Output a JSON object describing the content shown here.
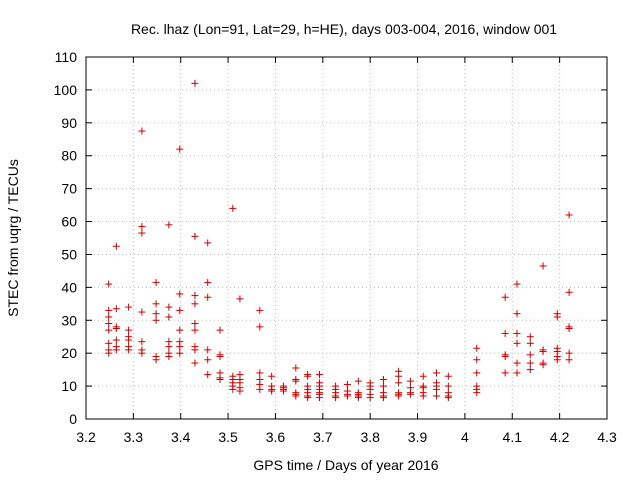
{
  "chart_data": {
    "type": "scatter",
    "title": "Rec. lhaz (Lon=91, Lat=29, h=HE), days 003-004, 2016, window 001",
    "xlabel": "GPS time / Days of year 2016",
    "ylabel": "STEC from uqrg / TECUs",
    "xlim": [
      3.2,
      4.3
    ],
    "ylim": [
      0,
      110
    ],
    "xticks": [
      "3.2",
      "3.3",
      "3.4",
      "3.5",
      "3.6",
      "3.7",
      "3.8",
      "3.9",
      "4",
      "4.1",
      "4.2",
      "4.3"
    ],
    "yticks": [
      "0",
      "10",
      "20",
      "30",
      "40",
      "50",
      "60",
      "70",
      "80",
      "90",
      "100",
      "110"
    ],
    "grid": true,
    "marker": "+",
    "color": "#cc0000",
    "points": [
      [
        3.248,
        41
      ],
      [
        3.248,
        33
      ],
      [
        3.248,
        31
      ],
      [
        3.248,
        29
      ],
      [
        3.248,
        27
      ],
      [
        3.248,
        23
      ],
      [
        3.248,
        21
      ],
      [
        3.248,
        20
      ],
      [
        3.264,
        52.5
      ],
      [
        3.264,
        33.5
      ],
      [
        3.264,
        28
      ],
      [
        3.264,
        27.5
      ],
      [
        3.264,
        24
      ],
      [
        3.264,
        22
      ],
      [
        3.264,
        21
      ],
      [
        3.29,
        34
      ],
      [
        3.29,
        27
      ],
      [
        3.29,
        25
      ],
      [
        3.29,
        24
      ],
      [
        3.29,
        22
      ],
      [
        3.29,
        21
      ],
      [
        3.318,
        87.5
      ],
      [
        3.318,
        58.5
      ],
      [
        3.318,
        56.5
      ],
      [
        3.318,
        32.5
      ],
      [
        3.318,
        23.5
      ],
      [
        3.318,
        21
      ],
      [
        3.318,
        20
      ],
      [
        3.348,
        41.5
      ],
      [
        3.348,
        35
      ],
      [
        3.348,
        32
      ],
      [
        3.348,
        30
      ],
      [
        3.348,
        19
      ],
      [
        3.348,
        18
      ],
      [
        3.375,
        59
      ],
      [
        3.375,
        34
      ],
      [
        3.375,
        31
      ],
      [
        3.375,
        23.5
      ],
      [
        3.375,
        22
      ],
      [
        3.375,
        20
      ],
      [
        3.375,
        19
      ],
      [
        3.398,
        82
      ],
      [
        3.398,
        38
      ],
      [
        3.398,
        33
      ],
      [
        3.398,
        27
      ],
      [
        3.398,
        23.5
      ],
      [
        3.398,
        22
      ],
      [
        3.398,
        20
      ],
      [
        3.43,
        102
      ],
      [
        3.43,
        55.5
      ],
      [
        3.43,
        37.5
      ],
      [
        3.43,
        35
      ],
      [
        3.43,
        29
      ],
      [
        3.43,
        27
      ],
      [
        3.43,
        22
      ],
      [
        3.43,
        21
      ],
      [
        3.43,
        17
      ],
      [
        3.457,
        53.5
      ],
      [
        3.457,
        41.5
      ],
      [
        3.457,
        37
      ],
      [
        3.457,
        21
      ],
      [
        3.457,
        18
      ],
      [
        3.457,
        13.5
      ],
      [
        3.483,
        27
      ],
      [
        3.483,
        19.5
      ],
      [
        3.483,
        19
      ],
      [
        3.483,
        14
      ],
      [
        3.483,
        12.5
      ],
      [
        3.483,
        12
      ],
      [
        3.51,
        64
      ],
      [
        3.51,
        13
      ],
      [
        3.51,
        12
      ],
      [
        3.51,
        11
      ],
      [
        3.51,
        10
      ],
      [
        3.51,
        9
      ],
      [
        3.525,
        36.5
      ],
      [
        3.525,
        13.5
      ],
      [
        3.525,
        12
      ],
      [
        3.525,
        11
      ],
      [
        3.525,
        9.5
      ],
      [
        3.525,
        8.5
      ],
      [
        3.567,
        33
      ],
      [
        3.567,
        28
      ],
      [
        3.567,
        14
      ],
      [
        3.567,
        12
      ],
      [
        3.567,
        10.5
      ],
      [
        3.567,
        9
      ],
      [
        3.592,
        13
      ],
      [
        3.592,
        10
      ],
      [
        3.592,
        9
      ],
      [
        3.592,
        8.5
      ],
      [
        3.617,
        10
      ],
      [
        3.617,
        9.5
      ],
      [
        3.617,
        9
      ],
      [
        3.617,
        8.5
      ],
      [
        3.643,
        15.5
      ],
      [
        3.643,
        12
      ],
      [
        3.643,
        11.5
      ],
      [
        3.643,
        8
      ],
      [
        3.643,
        7.5
      ],
      [
        3.643,
        7
      ],
      [
        3.668,
        13.5
      ],
      [
        3.668,
        13
      ],
      [
        3.668,
        10
      ],
      [
        3.668,
        9
      ],
      [
        3.668,
        8
      ],
      [
        3.668,
        7
      ],
      [
        3.668,
        6.5
      ],
      [
        3.693,
        13.5
      ],
      [
        3.693,
        11
      ],
      [
        3.693,
        10
      ],
      [
        3.693,
        9
      ],
      [
        3.693,
        8
      ],
      [
        3.693,
        7.5
      ],
      [
        3.693,
        6.5
      ],
      [
        3.727,
        10
      ],
      [
        3.727,
        9
      ],
      [
        3.727,
        8
      ],
      [
        3.727,
        7
      ],
      [
        3.727,
        6.5
      ],
      [
        3.752,
        10.5
      ],
      [
        3.752,
        8.5
      ],
      [
        3.752,
        7.5
      ],
      [
        3.752,
        7
      ],
      [
        3.775,
        11.5
      ],
      [
        3.775,
        8
      ],
      [
        3.775,
        7.5
      ],
      [
        3.775,
        7
      ],
      [
        3.775,
        6.5
      ],
      [
        3.8,
        11
      ],
      [
        3.8,
        10
      ],
      [
        3.8,
        9
      ],
      [
        3.8,
        7.5
      ],
      [
        3.8,
        6.5
      ],
      [
        3.828,
        12
      ],
      [
        3.828,
        10
      ],
      [
        3.828,
        8
      ],
      [
        3.828,
        7
      ],
      [
        3.828,
        6.5
      ],
      [
        3.86,
        14.5
      ],
      [
        3.86,
        13
      ],
      [
        3.86,
        11
      ],
      [
        3.86,
        8
      ],
      [
        3.86,
        7.5
      ],
      [
        3.86,
        7
      ],
      [
        3.885,
        11.5
      ],
      [
        3.885,
        9.5
      ],
      [
        3.885,
        8
      ],
      [
        3.885,
        7.5
      ],
      [
        3.912,
        13
      ],
      [
        3.912,
        10
      ],
      [
        3.912,
        9.5
      ],
      [
        3.912,
        8
      ],
      [
        3.912,
        7
      ],
      [
        3.94,
        14
      ],
      [
        3.94,
        11
      ],
      [
        3.94,
        10
      ],
      [
        3.94,
        9
      ],
      [
        3.94,
        7
      ],
      [
        3.965,
        13
      ],
      [
        3.965,
        10
      ],
      [
        3.965,
        8
      ],
      [
        3.965,
        7
      ],
      [
        3.965,
        6.5
      ],
      [
        4.025,
        21.5
      ],
      [
        4.025,
        18
      ],
      [
        4.025,
        14
      ],
      [
        4.025,
        10
      ],
      [
        4.025,
        9
      ],
      [
        4.025,
        8
      ],
      [
        4.085,
        37
      ],
      [
        4.085,
        26
      ],
      [
        4.085,
        19.5
      ],
      [
        4.085,
        19
      ],
      [
        4.085,
        14
      ],
      [
        4.11,
        41
      ],
      [
        4.11,
        32
      ],
      [
        4.11,
        26
      ],
      [
        4.11,
        23
      ],
      [
        4.11,
        17
      ],
      [
        4.11,
        14
      ],
      [
        4.138,
        25
      ],
      [
        4.138,
        23
      ],
      [
        4.138,
        19.5
      ],
      [
        4.138,
        17
      ],
      [
        4.138,
        15
      ],
      [
        4.165,
        46.5
      ],
      [
        4.165,
        21
      ],
      [
        4.165,
        20.5
      ],
      [
        4.165,
        17
      ],
      [
        4.165,
        16.5
      ],
      [
        4.195,
        32
      ],
      [
        4.195,
        31
      ],
      [
        4.195,
        21.5
      ],
      [
        4.195,
        20.5
      ],
      [
        4.195,
        19
      ],
      [
        4.195,
        18
      ],
      [
        4.22,
        62
      ],
      [
        4.22,
        38.5
      ],
      [
        4.22,
        28
      ],
      [
        4.22,
        27.5
      ],
      [
        4.22,
        20
      ],
      [
        4.22,
        18
      ]
    ]
  }
}
